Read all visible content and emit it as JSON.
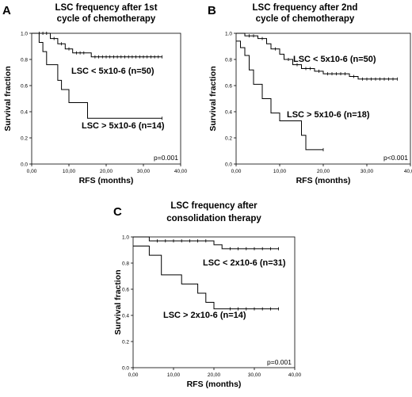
{
  "chart_data": [
    {
      "type": "line",
      "panel_letter": "A",
      "title_lines": [
        "LSC frequency after 1st",
        "cycle of chemotherapy"
      ],
      "xlabel": "RFS (months)",
      "ylabel": "Survival fraction",
      "xlim": [
        0,
        40
      ],
      "ylim": [
        0,
        1
      ],
      "x_ticks": [
        "0,00",
        "10,00",
        "20,00",
        "30,00",
        "40,00"
      ],
      "y_ticks": [
        "0.0",
        "0.2",
        "0.4",
        "0.6",
        "0.8",
        "1.0"
      ],
      "p_value": "p=0.001",
      "series": [
        {
          "name": "LSC < 5x10-6 (n=50)",
          "steps": [
            [
              0,
              1.0
            ],
            [
              5,
              0.96
            ],
            [
              7,
              0.92
            ],
            [
              9,
              0.88
            ],
            [
              11,
              0.85
            ],
            [
              16,
              0.82
            ],
            [
              35,
              0.82
            ]
          ],
          "censors": [
            [
              2,
              1.0
            ],
            [
              3,
              1.0
            ],
            [
              4,
              1.0
            ],
            [
              6,
              0.96
            ],
            [
              8,
              0.92
            ],
            [
              10,
              0.88
            ],
            [
              12,
              0.85
            ],
            [
              13,
              0.85
            ],
            [
              14,
              0.85
            ],
            [
              17,
              0.82
            ],
            [
              18,
              0.82
            ],
            [
              19,
              0.82
            ],
            [
              20,
              0.82
            ],
            [
              21,
              0.82
            ],
            [
              22,
              0.82
            ],
            [
              23,
              0.82
            ],
            [
              24,
              0.82
            ],
            [
              25,
              0.82
            ],
            [
              26,
              0.82
            ],
            [
              27,
              0.82
            ],
            [
              28,
              0.82
            ],
            [
              29,
              0.82
            ],
            [
              30,
              0.82
            ],
            [
              31,
              0.82
            ],
            [
              32,
              0.82
            ],
            [
              33,
              0.82
            ],
            [
              34,
              0.82
            ],
            [
              35,
              0.82
            ]
          ]
        },
        {
          "name": "LSC > 5x10-6 (n=14)",
          "steps": [
            [
              0,
              1.0
            ],
            [
              2,
              0.93
            ],
            [
              3,
              0.86
            ],
            [
              4,
              0.76
            ],
            [
              7,
              0.64
            ],
            [
              8,
              0.57
            ],
            [
              10,
              0.47
            ],
            [
              15,
              0.35
            ],
            [
              35,
              0.35
            ]
          ],
          "censors": [
            [
              35,
              0.35
            ]
          ]
        }
      ]
    },
    {
      "type": "line",
      "panel_letter": "B",
      "title_lines": [
        "LSC frequency after 2nd",
        "cycle of chemotherapy"
      ],
      "xlabel": "RFS (months)",
      "ylabel": "Survival fraction",
      "xlim": [
        0,
        40
      ],
      "ylim": [
        0,
        1
      ],
      "x_ticks": [
        "0,00",
        "10,00",
        "20,00",
        "30,00",
        "40,00"
      ],
      "y_ticks": [
        "0.0",
        "0.2",
        "0.4",
        "0.6",
        "0.8",
        "1.0"
      ],
      "p_value": "p<0.001",
      "series": [
        {
          "name": "LSC < 5x10-6 (n=50)",
          "steps": [
            [
              0,
              1.0
            ],
            [
              2,
              0.98
            ],
            [
              5,
              0.96
            ],
            [
              7,
              0.92
            ],
            [
              8,
              0.88
            ],
            [
              10,
              0.84
            ],
            [
              11,
              0.8
            ],
            [
              13,
              0.76
            ],
            [
              15,
              0.73
            ],
            [
              18,
              0.71
            ],
            [
              20,
              0.69
            ],
            [
              26,
              0.67
            ],
            [
              28,
              0.65
            ],
            [
              37,
              0.65
            ]
          ],
          "censors": [
            [
              3,
              0.98
            ],
            [
              4,
              0.98
            ],
            [
              6,
              0.96
            ],
            [
              9,
              0.88
            ],
            [
              12,
              0.8
            ],
            [
              14,
              0.76
            ],
            [
              16,
              0.73
            ],
            [
              17,
              0.73
            ],
            [
              19,
              0.71
            ],
            [
              21,
              0.69
            ],
            [
              22,
              0.69
            ],
            [
              23,
              0.69
            ],
            [
              24,
              0.69
            ],
            [
              25,
              0.69
            ],
            [
              27,
              0.67
            ],
            [
              29,
              0.65
            ],
            [
              30,
              0.65
            ],
            [
              31,
              0.65
            ],
            [
              32,
              0.65
            ],
            [
              33,
              0.65
            ],
            [
              34,
              0.65
            ],
            [
              35,
              0.65
            ],
            [
              36,
              0.65
            ],
            [
              37,
              0.65
            ]
          ]
        },
        {
          "name": "LSC > 5x10-6 (n=18)",
          "steps": [
            [
              0,
              0.94
            ],
            [
              1,
              0.89
            ],
            [
              2,
              0.83
            ],
            [
              3,
              0.72
            ],
            [
              4,
              0.61
            ],
            [
              6,
              0.5
            ],
            [
              8,
              0.39
            ],
            [
              10,
              0.33
            ],
            [
              15,
              0.22
            ],
            [
              16,
              0.11
            ],
            [
              20,
              0.11
            ]
          ],
          "censors": [
            [
              20,
              0.11
            ]
          ]
        }
      ]
    },
    {
      "type": "line",
      "panel_letter": "C",
      "title_lines": [
        "LSC frequency after",
        "consolidation therapy"
      ],
      "xlabel": "RFS (months)",
      "ylabel": "Survival fraction",
      "xlim": [
        0,
        40
      ],
      "ylim": [
        0,
        1
      ],
      "x_ticks": [
        "0,00",
        "10,00",
        "20,00",
        "30,00",
        "40,00"
      ],
      "y_ticks": [
        "0.0",
        "0.2",
        "0.4",
        "0.6",
        "0.8",
        "1.0"
      ],
      "p_value": "p=0.001",
      "series": [
        {
          "name": "LSC < 2x10-6 (n=31)",
          "steps": [
            [
              0,
              1.0
            ],
            [
              4,
              0.97
            ],
            [
              20,
              0.94
            ],
            [
              22,
              0.91
            ],
            [
              36,
              0.91
            ]
          ],
          "censors": [
            [
              6,
              0.97
            ],
            [
              8,
              0.97
            ],
            [
              10,
              0.97
            ],
            [
              12,
              0.97
            ],
            [
              14,
              0.97
            ],
            [
              16,
              0.97
            ],
            [
              18,
              0.97
            ],
            [
              24,
              0.91
            ],
            [
              26,
              0.91
            ],
            [
              28,
              0.91
            ],
            [
              30,
              0.91
            ],
            [
              32,
              0.91
            ],
            [
              34,
              0.91
            ],
            [
              36,
              0.91
            ]
          ]
        },
        {
          "name": "LSC > 2x10-6 (n=14)",
          "steps": [
            [
              0,
              0.93
            ],
            [
              4,
              0.86
            ],
            [
              7,
              0.71
            ],
            [
              12,
              0.64
            ],
            [
              16,
              0.57
            ],
            [
              18,
              0.5
            ],
            [
              20,
              0.45
            ],
            [
              36,
              0.45
            ]
          ],
          "censors": [
            [
              24,
              0.45
            ],
            [
              26,
              0.45
            ],
            [
              28,
              0.45
            ],
            [
              30,
              0.45
            ],
            [
              32,
              0.45
            ],
            [
              34,
              0.45
            ],
            [
              36,
              0.45
            ]
          ]
        }
      ]
    }
  ]
}
